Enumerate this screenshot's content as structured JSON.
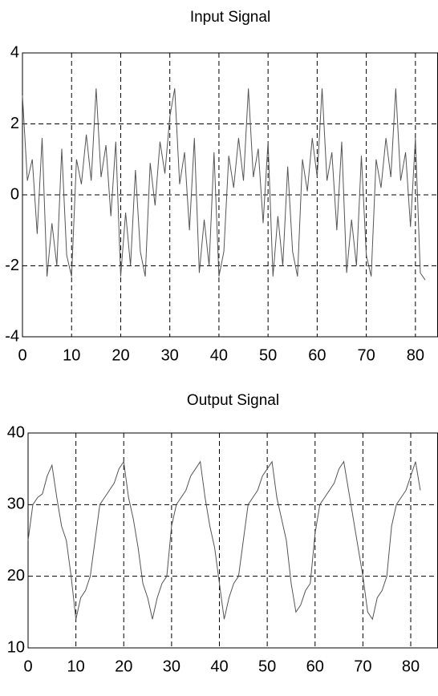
{
  "chart_data": [
    {
      "type": "line",
      "title": "Input Signal",
      "color": "#555555",
      "grid": true,
      "x": [
        0,
        1,
        2,
        3,
        4,
        5,
        6,
        7,
        8,
        9,
        10,
        11,
        12,
        13,
        14,
        15,
        16,
        17,
        18,
        19,
        20,
        21,
        22,
        23,
        24,
        25,
        26,
        27,
        28,
        29,
        30,
        31,
        32,
        33,
        34,
        35,
        36,
        37,
        38,
        39,
        40,
        41,
        42,
        43,
        44,
        45,
        46,
        47,
        48,
        49,
        50,
        51,
        52,
        53,
        54,
        55,
        56,
        57,
        58,
        59,
        60,
        61,
        62,
        63,
        64,
        65,
        66,
        67,
        68,
        69,
        70,
        71,
        72,
        73,
        74,
        75,
        76,
        77,
        78,
        79,
        80,
        81,
        82
      ],
      "values": [
        2.8,
        0.4,
        1.0,
        -1.1,
        1.6,
        -2.3,
        -0.8,
        -2.0,
        1.3,
        -1.7,
        -2.3,
        1.0,
        0.3,
        1.7,
        0.4,
        3.0,
        0.5,
        1.4,
        -0.6,
        1.5,
        -2.3,
        -0.5,
        -2.0,
        0.7,
        -1.6,
        -2.3,
        0.9,
        -0.3,
        1.5,
        0.6,
        2.2,
        3.0,
        0.3,
        1.2,
        -1.0,
        1.6,
        -2.2,
        -0.7,
        -2.0,
        1.2,
        -2.3,
        -1.6,
        1.1,
        0.2,
        1.6,
        0.4,
        3.0,
        0.5,
        1.3,
        -0.8,
        1.5,
        -2.3,
        -0.6,
        -2.0,
        0.8,
        -1.6,
        -2.3,
        1.0,
        0.1,
        1.6,
        0.5,
        3.0,
        0.4,
        1.2,
        -1.0,
        1.5,
        -2.2,
        -0.7,
        -2.0,
        1.1,
        -1.7,
        -2.3,
        1.0,
        0.2,
        1.6,
        0.5,
        3.0,
        0.4,
        1.2,
        -0.9,
        1.6,
        -2.2,
        -2.4
      ],
      "xlim": [
        0,
        84.6
      ],
      "xticks": [
        0,
        10,
        20,
        30,
        40,
        50,
        60,
        70,
        80
      ],
      "ylim": [
        -4,
        4
      ],
      "yticks": [
        -4,
        -2,
        0,
        2,
        4
      ]
    },
    {
      "type": "line",
      "title": "Output Signal",
      "color": "#555555",
      "grid": true,
      "x": [
        0,
        1,
        2,
        3,
        4,
        5,
        6,
        7,
        8,
        9,
        10,
        11,
        12,
        13,
        14,
        15,
        16,
        17,
        18,
        19,
        20,
        21,
        22,
        23,
        24,
        25,
        26,
        27,
        28,
        29,
        30,
        31,
        32,
        33,
        34,
        35,
        36,
        37,
        38,
        39,
        40,
        41,
        42,
        43,
        44,
        45,
        46,
        47,
        48,
        49,
        50,
        51,
        52,
        53,
        54,
        55,
        56,
        57,
        58,
        59,
        60,
        61,
        62,
        63,
        64,
        65,
        66,
        67,
        68,
        69,
        70,
        71,
        72,
        73,
        74,
        75,
        76,
        77,
        78,
        79,
        80,
        81,
        82
      ],
      "values": [
        25,
        30,
        31,
        31.5,
        34,
        35.5,
        31,
        27,
        25,
        20,
        14,
        17,
        18,
        20,
        25,
        30,
        31,
        32,
        33,
        35,
        36,
        31,
        28,
        24,
        19,
        17,
        14,
        17,
        19,
        20,
        27,
        30,
        31,
        32,
        34,
        35,
        36,
        31,
        27,
        24,
        19,
        14,
        17,
        19,
        20,
        25,
        30,
        31,
        32,
        34,
        35,
        36,
        31,
        28,
        25,
        19,
        15,
        16,
        18,
        19,
        26,
        30,
        31,
        32,
        33,
        35,
        36,
        32,
        28,
        24,
        20,
        15,
        14,
        17,
        18,
        20,
        27,
        30,
        31,
        32,
        34,
        36,
        32
      ],
      "xlim": [
        0,
        85.7
      ],
      "xticks": [
        0,
        10,
        20,
        30,
        40,
        50,
        60,
        70,
        80
      ],
      "ylim": [
        10,
        40
      ],
      "yticks": [
        10,
        20,
        30,
        40
      ]
    }
  ]
}
